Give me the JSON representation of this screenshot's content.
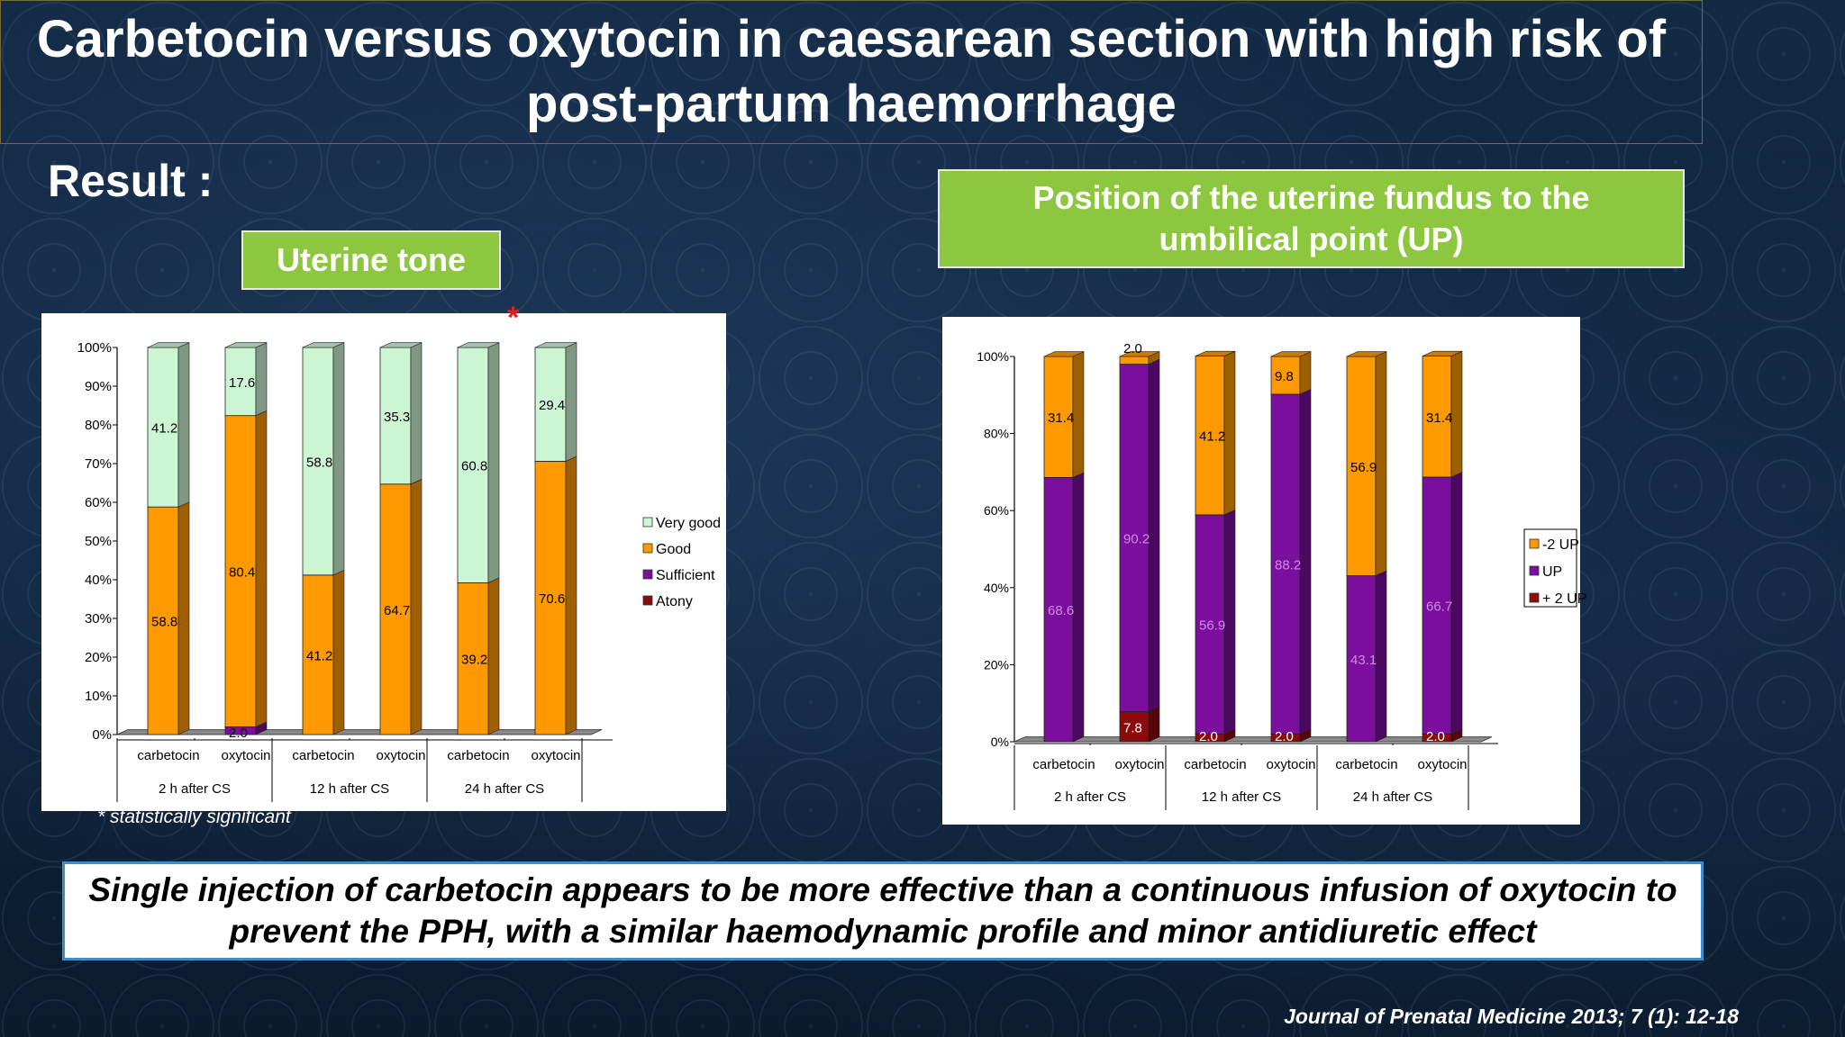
{
  "slide": {
    "title": "Carbetocin versus oxytocin in caesarean section with high risk of post-partum haemorrhage",
    "result_heading": "Result :",
    "left_label": "Uterine tone",
    "right_label": "Position of the uterine fundus to the umbilical point (UP)",
    "footnote": "* statistically significant",
    "significance_marker": "*",
    "conclusion": "Single injection of carbetocin appears to be more effective than a continuous infusion of oxytocin to prevent the PPH, with a similar haemodynamic profile and minor antidiuretic effect",
    "citation": "Journal of Prenatal Medicine 2013; 7 (1): 12-18"
  },
  "colors": {
    "accent_green": "#8dc63f",
    "very_good": "#ccf5d3",
    "good": "#ff9900",
    "sufficient": "#7a0f9e",
    "atony": "#8b0a0a",
    "minus2up": "#ff9900",
    "up": "#7a0f9e",
    "plus2up": "#8b0a0a",
    "conclusion_border": "#3b8fd0"
  },
  "chart_data": [
    {
      "type": "bar",
      "stacked": true,
      "orientation": "vertical",
      "title": "Uterine tone",
      "categories": [
        "carbetocin",
        "oxytocin",
        "carbetocin",
        "oxytocin",
        "carbetocin",
        "oxytocin"
      ],
      "groups": [
        "2 h after CS",
        "12 h after CS",
        "24 h after CS"
      ],
      "ylim": [
        0,
        100
      ],
      "yticks": [
        "0%",
        "10%",
        "20%",
        "30%",
        "40%",
        "50%",
        "60%",
        "70%",
        "80%",
        "90%",
        "100%"
      ],
      "legend_position": "right",
      "series": [
        {
          "name": "Atony",
          "values": [
            0,
            0,
            0,
            0,
            0,
            0
          ],
          "labels": [
            "",
            "",
            "",
            "",
            "",
            ""
          ]
        },
        {
          "name": "Sufficient",
          "values": [
            0,
            2.0,
            0,
            0,
            0,
            0
          ],
          "labels": [
            "",
            "2.0",
            "",
            "",
            "",
            ""
          ]
        },
        {
          "name": "Good",
          "values": [
            58.8,
            80.4,
            41.2,
            64.7,
            39.2,
            70.6
          ],
          "labels": [
            "58.8",
            "80.4",
            "41.2",
            "64.7",
            "39.2",
            "70.6"
          ]
        },
        {
          "name": "Very good",
          "values": [
            41.2,
            17.6,
            58.8,
            35.3,
            60.8,
            29.4
          ],
          "labels": [
            "41.2",
            "17.6",
            "58.8",
            "35.3",
            "60.8",
            "29.4"
          ]
        }
      ],
      "legend_order": [
        "Very good",
        "Good",
        "Sufficient",
        "Atony"
      ]
    },
    {
      "type": "bar",
      "stacked": true,
      "orientation": "vertical",
      "title": "Position of the uterine fundus to the umbilical point (UP)",
      "categories": [
        "carbetocin",
        "oxytocin",
        "carbetocin",
        "oxytocin",
        "carbetocin",
        "oxytocin"
      ],
      "groups": [
        "2 h after CS",
        "12 h after CS",
        "24 h after CS"
      ],
      "ylim": [
        0,
        100
      ],
      "yticks": [
        "0%",
        "20%",
        "40%",
        "60%",
        "80%",
        "100%"
      ],
      "legend_position": "right",
      "series": [
        {
          "name": "+ 2 UP",
          "values": [
            0,
            7.8,
            2.0,
            2.0,
            0,
            2.0
          ],
          "labels": [
            "",
            "7.8",
            "2.0",
            "2.0",
            "",
            "2.0"
          ]
        },
        {
          "name": "UP",
          "values": [
            68.6,
            90.2,
            56.9,
            88.2,
            43.1,
            66.7
          ],
          "labels": [
            "68.6",
            "90.2",
            "56.9",
            "88.2",
            "43.1",
            "66.7"
          ]
        },
        {
          "name": "-2 UP",
          "values": [
            31.4,
            2.0,
            41.2,
            9.8,
            56.9,
            31.4
          ],
          "labels": [
            "31.4",
            "2.0",
            "41.2",
            "9.8",
            "56.9",
            "31.4"
          ]
        }
      ],
      "legend_order": [
        "-2 UP",
        "UP",
        "+ 2 UP"
      ]
    }
  ]
}
